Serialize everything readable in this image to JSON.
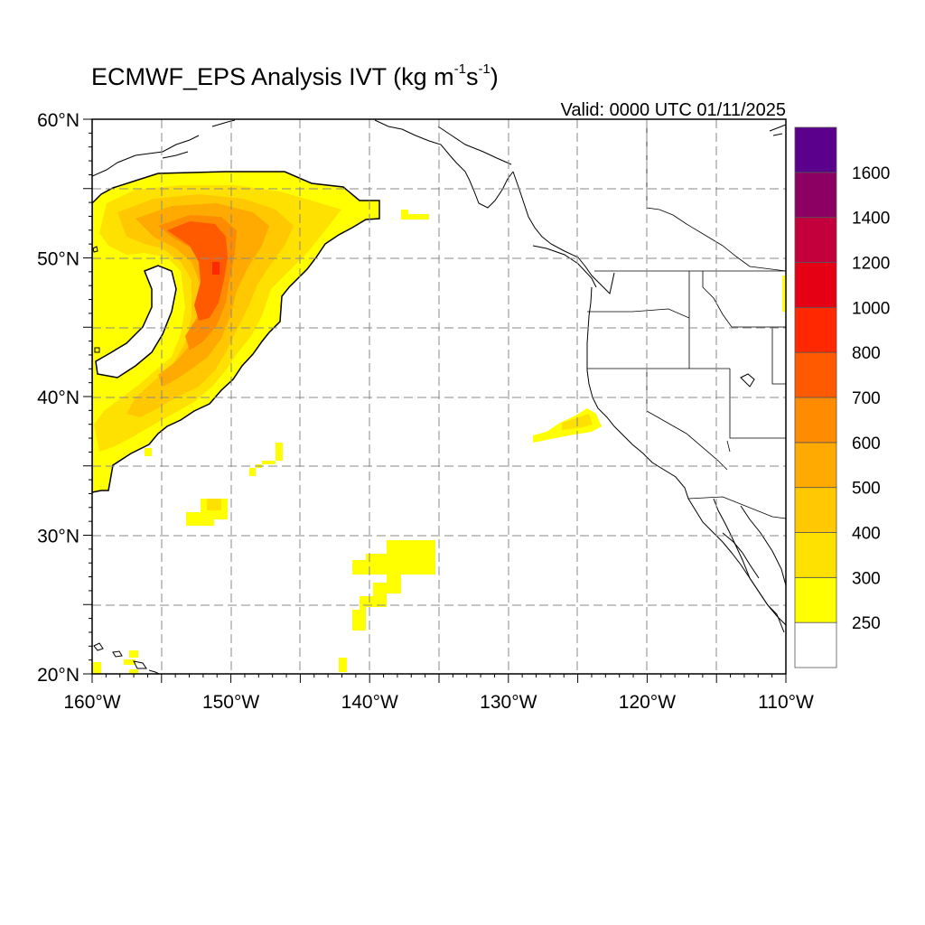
{
  "title": {
    "prefix": "ECMWF_EPS Analysis IVT (kg m",
    "exp1": "-1",
    "mid": "s",
    "exp2": "-1",
    "suffix": ")"
  },
  "valid_text": "Valid: 0000 UTC 01/11/2025",
  "axes": {
    "lat_labels": [
      {
        "text": "60°N",
        "value": 60
      },
      {
        "text": "50°N",
        "value": 50
      },
      {
        "text": "40°N",
        "value": 40
      },
      {
        "text": "30°N",
        "value": 30
      },
      {
        "text": "20°N",
        "value": 20
      }
    ],
    "lon_labels": [
      {
        "text": "160°W",
        "value": -160
      },
      {
        "text": "150°W",
        "value": -150
      },
      {
        "text": "140°W",
        "value": -140
      },
      {
        "text": "130°W",
        "value": -130
      },
      {
        "text": "120°W",
        "value": -120
      },
      {
        "text": "110°W",
        "value": -110
      }
    ],
    "lat_range": [
      20,
      60
    ],
    "lon_range": [
      -160,
      -110
    ],
    "gridlines": "dashed every 5 degrees"
  },
  "colorbar": {
    "labels": [
      "250",
      "300",
      "400",
      "500",
      "600",
      "700",
      "800",
      "1000",
      "1200",
      "1400",
      "1600"
    ],
    "colors": [
      "#ffffff",
      "#ffff00",
      "#ffe100",
      "#ffc800",
      "#ffaa00",
      "#ff8c00",
      "#ff5a00",
      "#ff2800",
      "#e60014",
      "#c3003c",
      "#8c0064",
      "#5a008c"
    ]
  },
  "field": {
    "description": "IVT shading",
    "colors": {
      "c300": "#ffff00",
      "c400": "#ffe100",
      "c500": "#ffc800",
      "c600": "#ffaa00",
      "c700": "#ff8c00",
      "c800": "#ff5a00"
    }
  }
}
